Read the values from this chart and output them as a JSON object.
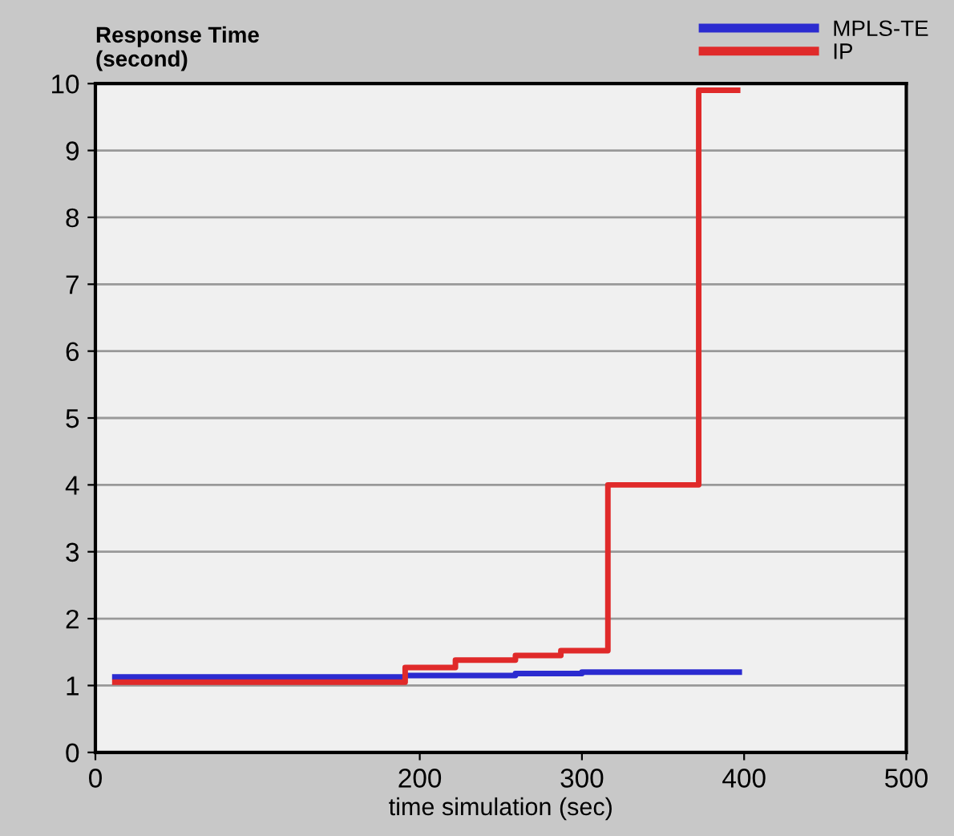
{
  "chart_data": {
    "type": "step",
    "ylabel": "Response Time\n(second)",
    "xlabel": "time simulation (sec)",
    "series": [
      {
        "name": "MPLS-TE",
        "color": "#2b2bd0",
        "x": [
          12,
          191,
          259,
          300,
          397
        ],
        "values": [
          1.13,
          1.15,
          1.18,
          1.2,
          1.2
        ]
      },
      {
        "name": "IP",
        "color": "#e02a2a",
        "x": [
          12,
          191,
          222,
          259,
          287,
          316,
          372,
          396
        ],
        "values": [
          1.05,
          1.27,
          1.38,
          1.45,
          1.52,
          4.0,
          9.9,
          9.9
        ]
      }
    ],
    "xlim": [
      0,
      500
    ],
    "xticks": [
      0,
      200,
      300,
      400,
      500
    ],
    "ylim": [
      0,
      10
    ],
    "yticks": [
      0,
      1,
      2,
      3,
      4,
      5,
      6,
      7,
      8,
      9,
      10
    ],
    "grid": "y",
    "legend": "top right"
  }
}
